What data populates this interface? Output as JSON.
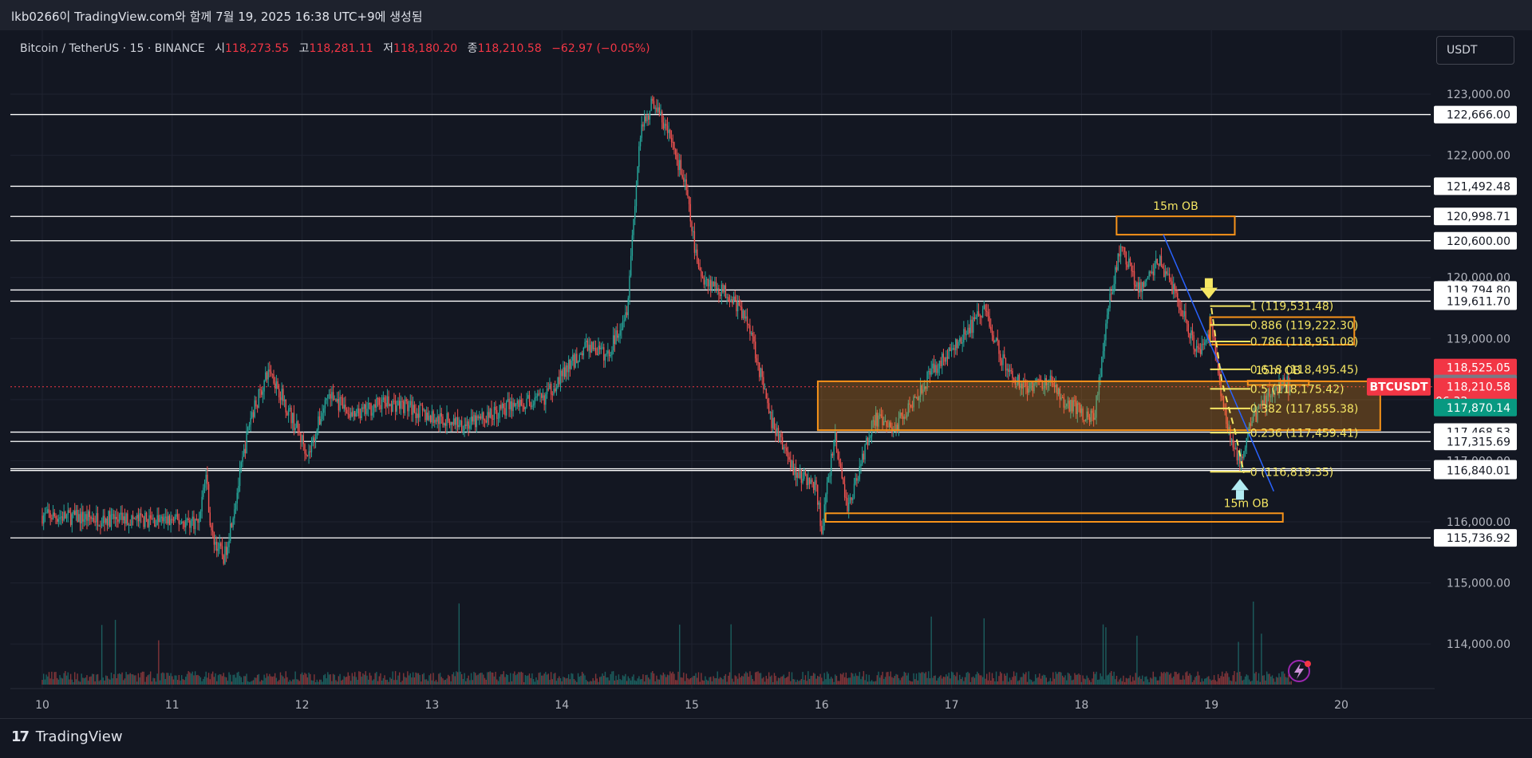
{
  "header": {
    "caption": "lkb0266이 TradingView.com와 함께 7월 19, 2025 16:38 UTC+9에 생성됨"
  },
  "legend": {
    "symbol": "Bitcoin / TetherUS · 15 · BINANCE",
    "open_label": "시",
    "open": "118,273.55",
    "high_label": "고",
    "high": "118,281.11",
    "low_label": "저",
    "low": "118,180.20",
    "close_label": "종",
    "close": "118,210.58",
    "change": "−62.97 (−0.05%)"
  },
  "currency": "USDT",
  "footer": {
    "brand": "TradingView",
    "brand_mark": "17"
  },
  "colors": {
    "background": "#131722",
    "up": "#26a69a",
    "down": "#ef5350",
    "order_block": "#f7931a",
    "fib": "#f5e663",
    "trendline": "#2962ff",
    "horizontal_line": "#ffffff",
    "price_tag_current": "#f23645",
    "price_tag_green": "#089981",
    "price_tag_gray": "#787b86"
  },
  "chart_data": {
    "type": "candlestick",
    "symbol": "BTCUSDT",
    "timeframe": "15",
    "x_ticks": [
      "10",
      "11",
      "12",
      "13",
      "14",
      "15",
      "16",
      "17",
      "18",
      "19",
      "20"
    ],
    "y_ticks": [
      "123,000.00",
      "122,000.00",
      "121,000.00",
      "120,000.00",
      "119,000.00",
      "118,000.00",
      "117,000.00",
      "116,000.00",
      "115,000.00",
      "114,000.00"
    ],
    "y_tick_values": [
      123000,
      122000,
      121000,
      120000,
      119000,
      118000,
      117000,
      116000,
      115000,
      114000
    ],
    "ylim": [
      113600,
      123500
    ],
    "xlim": [
      9.75,
      20.3
    ],
    "price_path": [
      {
        "t": 10.0,
        "p": 116100
      },
      {
        "t": 10.5,
        "p": 116050
      },
      {
        "t": 11.2,
        "p": 116000
      },
      {
        "t": 11.26,
        "p": 116800
      },
      {
        "t": 11.3,
        "p": 115800
      },
      {
        "t": 11.4,
        "p": 115400
      },
      {
        "t": 11.5,
        "p": 116500
      },
      {
        "t": 11.6,
        "p": 117700
      },
      {
        "t": 11.75,
        "p": 118500
      },
      {
        "t": 11.9,
        "p": 117800
      },
      {
        "t": 12.05,
        "p": 117100
      },
      {
        "t": 12.2,
        "p": 118100
      },
      {
        "t": 12.4,
        "p": 117700
      },
      {
        "t": 12.6,
        "p": 117950
      },
      {
        "t": 12.8,
        "p": 117900
      },
      {
        "t": 13.0,
        "p": 117700
      },
      {
        "t": 13.3,
        "p": 117600
      },
      {
        "t": 13.6,
        "p": 117900
      },
      {
        "t": 13.85,
        "p": 118000
      },
      {
        "t": 14.0,
        "p": 118400
      },
      {
        "t": 14.2,
        "p": 118900
      },
      {
        "t": 14.35,
        "p": 118700
      },
      {
        "t": 14.5,
        "p": 119500
      },
      {
        "t": 14.6,
        "p": 122300
      },
      {
        "t": 14.7,
        "p": 122900
      },
      {
        "t": 14.85,
        "p": 122200
      },
      {
        "t": 14.95,
        "p": 121500
      },
      {
        "t": 15.05,
        "p": 120100
      },
      {
        "t": 15.15,
        "p": 119900
      },
      {
        "t": 15.3,
        "p": 119700
      },
      {
        "t": 15.45,
        "p": 119200
      },
      {
        "t": 15.6,
        "p": 117700
      },
      {
        "t": 15.8,
        "p": 116800
      },
      {
        "t": 15.95,
        "p": 116600
      },
      {
        "t": 16.0,
        "p": 115900
      },
      {
        "t": 16.1,
        "p": 117400
      },
      {
        "t": 16.2,
        "p": 116200
      },
      {
        "t": 16.4,
        "p": 117700
      },
      {
        "t": 16.55,
        "p": 117500
      },
      {
        "t": 16.7,
        "p": 118000
      },
      {
        "t": 16.9,
        "p": 118600
      },
      {
        "t": 17.05,
        "p": 118900
      },
      {
        "t": 17.25,
        "p": 119500
      },
      {
        "t": 17.4,
        "p": 118600
      },
      {
        "t": 17.55,
        "p": 118200
      },
      {
        "t": 17.75,
        "p": 118300
      },
      {
        "t": 17.9,
        "p": 117900
      },
      {
        "t": 18.1,
        "p": 117700
      },
      {
        "t": 18.2,
        "p": 119400
      },
      {
        "t": 18.3,
        "p": 120500
      },
      {
        "t": 18.45,
        "p": 119800
      },
      {
        "t": 18.6,
        "p": 120300
      },
      {
        "t": 18.75,
        "p": 119600
      },
      {
        "t": 18.9,
        "p": 118700
      },
      {
        "t": 19.0,
        "p": 119200
      },
      {
        "t": 19.1,
        "p": 117800
      },
      {
        "t": 19.22,
        "p": 116900
      },
      {
        "t": 19.3,
        "p": 117600
      },
      {
        "t": 19.45,
        "p": 118100
      },
      {
        "t": 19.55,
        "p": 118300
      },
      {
        "t": 19.62,
        "p": 118210
      }
    ],
    "horizontal_levels": [
      {
        "price": 122666.0,
        "label": "122,666.00"
      },
      {
        "price": 121492.48,
        "label": "121,492.48"
      },
      {
        "price": 120998.71,
        "label": "120,998.71"
      },
      {
        "price": 120600.0,
        "label": "120,600.00"
      },
      {
        "price": 119794.8,
        "label": "119,794.80"
      },
      {
        "price": 119611.7,
        "label": "119,611.70"
      },
      {
        "price": 117468.53,
        "label": "117,468.53"
      },
      {
        "price": 117315.69,
        "label": "117,315.69"
      },
      {
        "price": 116868.0,
        "label": "116,868.00"
      },
      {
        "price": 116840.01,
        "label": "116,840.01"
      },
      {
        "price": 115736.92,
        "label": "115,736.92"
      }
    ],
    "price_tags": [
      {
        "price": 118525.05,
        "label": "118,525.05",
        "style": "red"
      },
      {
        "price": 118263.96,
        "label": "118,263.96",
        "style": "gray"
      },
      {
        "price": 118210.58,
        "label": "118,210.58",
        "sub": "06:32",
        "style": "red",
        "symbol": "BTCUSDT"
      },
      {
        "price": 117870.14,
        "label": "117,870.14",
        "style": "green"
      }
    ],
    "current_price": 118210.58,
    "order_blocks": [
      {
        "x0": 18.27,
        "x1": 19.18,
        "top": 121000,
        "bottom": 120700,
        "label": "15m OB",
        "label_pos": "above"
      },
      {
        "x0": 15.97,
        "x1": 20.3,
        "top": 118300,
        "bottom": 117500,
        "label": "",
        "filled": true
      },
      {
        "x0": 16.03,
        "x1": 19.55,
        "top": 116140,
        "bottom": 116000,
        "label": "15m OB",
        "label_pos": "above-right"
      },
      {
        "x0": 18.99,
        "x1": 20.1,
        "top": 119350,
        "bottom": 118900,
        "label": "",
        "filled": false
      },
      {
        "x0": 19.28,
        "x1": 19.75,
        "top": 118310,
        "bottom": 118240,
        "label": "15m OB",
        "label_pos": "above"
      }
    ],
    "fibonacci": {
      "x_line_start": 18.99,
      "x_line_end": 19.3,
      "x_label": 19.28,
      "levels": [
        {
          "ratio": "1",
          "price": 119531.48,
          "label": "1 (119,531.48)"
        },
        {
          "ratio": "0.886",
          "price": 119222.3,
          "label": "0.886 (119,222.30)"
        },
        {
          "ratio": "0.786",
          "price": 118951.08,
          "label": "0.786 (118,951.08)"
        },
        {
          "ratio": "0.618",
          "price": 118495.45,
          "label": "0.618 (118,495.45)"
        },
        {
          "ratio": "0.5",
          "price": 118175.42,
          "label": "0.5 (118,175.42)"
        },
        {
          "ratio": "0.382",
          "price": 117855.38,
          "label": "0.382 (117,855.38)"
        },
        {
          "ratio": "0.236",
          "price": 117459.41,
          "label": "0.236 (117,459.41)"
        },
        {
          "ratio": "0",
          "price": 116819.35,
          "label": "0 (116,819.35)"
        }
      ]
    },
    "trendline": {
      "x0": 18.63,
      "p0": 120700,
      "x1": 19.48,
      "p1": 116500
    },
    "arrows": [
      {
        "x": 18.98,
        "price": 119700,
        "direction": "down",
        "color": "#f5e663"
      },
      {
        "x": 19.22,
        "price": 116650,
        "direction": "up",
        "color": "#b2ebf2"
      }
    ]
  }
}
